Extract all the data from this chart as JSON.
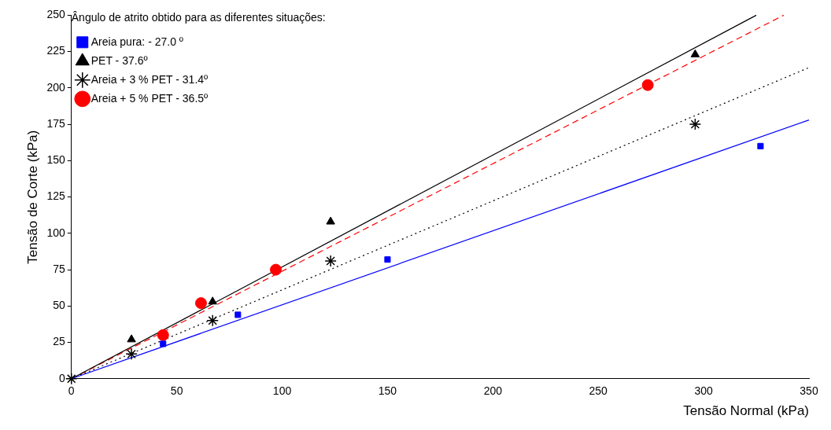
{
  "chart_data": {
    "type": "scatter",
    "xlabel": "Tensão Normal (kPa)",
    "ylabel": "Tensão de Corte (kPa)",
    "legend_title": "Ângulo de atrito obtido para as diferentes situações:",
    "legend": "top left",
    "grid": false,
    "xlim": [
      0,
      350
    ],
    "xticks": [
      0,
      50,
      100,
      150,
      200,
      250,
      300,
      350
    ],
    "ylim": [
      0,
      250
    ],
    "yticks": [
      0,
      25,
      50,
      75,
      100,
      125,
      150,
      175,
      200,
      225,
      250
    ],
    "series": [
      {
        "name": "Areia pura: - 27.0 º",
        "type": "scatter",
        "marker": "square",
        "color": "#0000ff",
        "x": [
          43.5,
          79,
          150,
          327
        ],
        "values": [
          24,
          44,
          82,
          160
        ]
      },
      {
        "name": "PET - 37.6º",
        "type": "scatter",
        "marker": "triangle",
        "color": "#000000",
        "x": [
          28.5,
          67,
          123,
          296
        ],
        "values": [
          27,
          53,
          108,
          223
        ]
      },
      {
        "name": "Areia + 3 % PET - 31.4º",
        "type": "scatter",
        "marker": "cross",
        "color": "#000000",
        "x": [
          0,
          28.5,
          67,
          123,
          296
        ],
        "values": [
          0,
          17,
          40,
          81,
          175
        ]
      },
      {
        "name": "Areia + 5 % PET - 36.5º",
        "type": "scatter",
        "marker": "circle",
        "color": "#ff0000",
        "x": [
          43.5,
          61.5,
          97,
          273.5
        ],
        "values": [
          30,
          52,
          75,
          202
        ]
      },
      {
        "type": "line",
        "marker": "none",
        "line_style": "solid",
        "color": "#0000ff",
        "x": [
          0,
          350
        ],
        "values": [
          0,
          178
        ]
      },
      {
        "type": "line",
        "marker": "none",
        "line_style": "solid",
        "color": "#000000",
        "x": [
          0,
          325
        ],
        "values": [
          0,
          250
        ]
      },
      {
        "type": "line",
        "marker": "none",
        "line_style": "dotted",
        "color": "#000000",
        "x": [
          0,
          350
        ],
        "values": [
          0,
          214
        ]
      },
      {
        "type": "line",
        "marker": "none",
        "line_style": "dashed",
        "color": "#ff0000",
        "x": [
          0,
          338
        ],
        "values": [
          0,
          250
        ]
      }
    ]
  }
}
